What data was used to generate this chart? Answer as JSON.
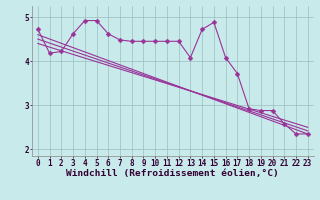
{
  "xlabel": "Windchill (Refroidissement éolien,°C)",
  "bg_color": "#c8eaea",
  "line_color": "#993399",
  "markersize": 2.5,
  "linewidth": 0.8,
  "xlim": [
    -0.5,
    23.5
  ],
  "ylim": [
    1.85,
    5.25
  ],
  "yticks": [
    2,
    3,
    4,
    5
  ],
  "xticks": [
    0,
    1,
    2,
    3,
    4,
    5,
    6,
    7,
    8,
    9,
    10,
    11,
    12,
    13,
    14,
    15,
    16,
    17,
    18,
    19,
    20,
    21,
    22,
    23
  ],
  "data_x": [
    0,
    1,
    2,
    3,
    4,
    5,
    6,
    7,
    8,
    9,
    10,
    11,
    12,
    13,
    14,
    15,
    16,
    17,
    18,
    19,
    20,
    21,
    22,
    23
  ],
  "data_y": [
    4.72,
    4.18,
    4.22,
    4.62,
    4.92,
    4.92,
    4.62,
    4.48,
    4.45,
    4.45,
    4.45,
    4.45,
    4.45,
    4.08,
    4.72,
    4.88,
    4.08,
    3.72,
    2.92,
    2.88,
    2.88,
    2.58,
    2.35,
    2.35
  ],
  "trend1_x": [
    0,
    23
  ],
  "trend1_y": [
    4.6,
    2.35
  ],
  "trend2_x": [
    0,
    23
  ],
  "trend2_y": [
    4.5,
    2.42
  ],
  "trend3_x": [
    0,
    23
  ],
  "trend3_y": [
    4.4,
    2.5
  ],
  "grid_color": "#9bbfbf",
  "tick_fontsize": 5.5,
  "xlabel_fontsize": 6.8,
  "tick_color": "#330033",
  "label_color": "#330033"
}
